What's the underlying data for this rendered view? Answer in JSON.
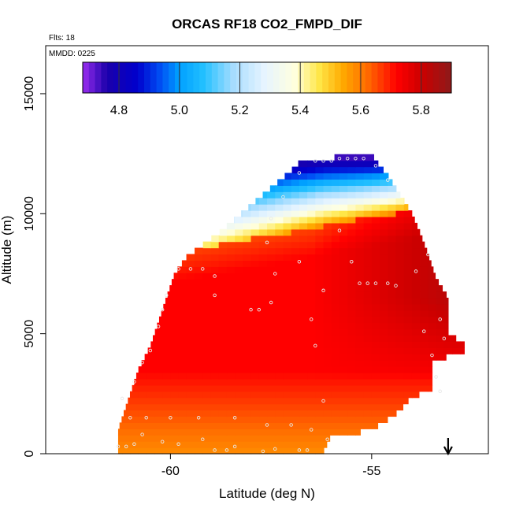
{
  "chart_data": {
    "type": "heatmap",
    "title": "ORCAS RF18 CO2_FMPD_DIF",
    "xlabel": "Latitude (deg N)",
    "ylabel": "Altitude (m)",
    "xlim": [
      -63.1,
      -52.1
    ],
    "ylim": [
      0,
      17000
    ],
    "x_ticks": [
      -60,
      -55
    ],
    "x_tick_labels": [
      "-60",
      "-55"
    ],
    "y_ticks": [
      0,
      5000,
      10000,
      15000
    ],
    "y_tick_labels": [
      "0",
      "5000",
      "10000",
      "15000"
    ],
    "flights_note": "Flts: 18",
    "date_note": "MMDD: 0225",
    "arrow_marker_latitude": -53.1,
    "colorbar": {
      "min": 4.68,
      "max": 5.9,
      "ticks": [
        4.8,
        5.0,
        5.2,
        5.4,
        5.6,
        5.8
      ],
      "tick_labels": [
        "4.8",
        "5.0",
        "5.2",
        "5.4",
        "5.6",
        "5.8"
      ],
      "stops": [
        {
          "v": 4.68,
          "c": "#9a2ef0"
        },
        {
          "v": 4.76,
          "c": "#1b00aa"
        },
        {
          "v": 4.86,
          "c": "#0000cc"
        },
        {
          "v": 4.94,
          "c": "#0052f5"
        },
        {
          "v": 5.0,
          "c": "#00a0ff"
        },
        {
          "v": 5.08,
          "c": "#22c0ff"
        },
        {
          "v": 5.18,
          "c": "#a8ddff"
        },
        {
          "v": 5.28,
          "c": "#e6f4ff"
        },
        {
          "v": 5.38,
          "c": "#ffffe0"
        },
        {
          "v": 5.46,
          "c": "#ffe84a"
        },
        {
          "v": 5.54,
          "c": "#ffaa00"
        },
        {
          "v": 5.62,
          "c": "#ff6d00"
        },
        {
          "v": 5.72,
          "c": "#ff0000"
        },
        {
          "v": 5.8,
          "c": "#cc0000"
        },
        {
          "v": 5.9,
          "c": "#8c1a1a"
        }
      ]
    },
    "field_description": "CO2 difference curtain: ~5.58 near surface, ~5.72 mid-troposphere, increasing toward ~5.85 in the southern/eastern upper region; sharp decrease above a tilted boundary (≈8300 m at -60.5 to ≈10300 m at -53.8) down to ~4.75 at ~12000 m.",
    "boundary_left": [
      [
        -61.3,
        0
      ],
      [
        -61.3,
        1000
      ],
      [
        -61.2,
        1500
      ],
      [
        -61.0,
        2500
      ],
      [
        -60.8,
        3500
      ],
      [
        -60.5,
        4500
      ],
      [
        -60.3,
        5500
      ],
      [
        -60.1,
        6500
      ],
      [
        -59.9,
        7500
      ],
      [
        -59.6,
        8200
      ],
      [
        -58.8,
        9200
      ],
      [
        -57.7,
        10800
      ],
      [
        -57.0,
        11800
      ],
      [
        -56.7,
        12300
      ],
      [
        -56.0,
        12300
      ],
      [
        -55.7,
        12500
      ]
    ],
    "boundary_right": [
      [
        -55.0,
        12500
      ],
      [
        -54.9,
        12200
      ],
      [
        -54.6,
        11600
      ],
      [
        -54.3,
        10800
      ],
      [
        -54.0,
        10000
      ],
      [
        -53.8,
        9200
      ],
      [
        -53.6,
        8300
      ],
      [
        -53.4,
        7300
      ],
      [
        -53.1,
        6500
      ],
      [
        -53.1,
        5000
      ],
      [
        -52.7,
        4600
      ],
      [
        -52.7,
        4200
      ],
      [
        -53.5,
        3900
      ],
      [
        -53.5,
        2600
      ],
      [
        -54.0,
        2400
      ],
      [
        -54.3,
        1800
      ],
      [
        -54.8,
        1200
      ],
      [
        -55.3,
        900
      ],
      [
        -56.0,
        800
      ],
      [
        -56.2,
        100
      ]
    ],
    "flight_points": [
      {
        "lat": -61.3,
        "alt": 300
      },
      {
        "lat": -61.1,
        "alt": 300
      },
      {
        "lat": -60.9,
        "alt": 400
      },
      {
        "lat": -60.7,
        "alt": 800
      },
      {
        "lat": -60.2,
        "alt": 500
      },
      {
        "lat": -59.8,
        "alt": 400
      },
      {
        "lat": -59.2,
        "alt": 600
      },
      {
        "lat": -58.9,
        "alt": 150
      },
      {
        "lat": -58.6,
        "alt": 150
      },
      {
        "lat": -58.4,
        "alt": 300
      },
      {
        "lat": -57.7,
        "alt": 100
      },
      {
        "lat": -57.4,
        "alt": 200
      },
      {
        "lat": -56.8,
        "alt": 150
      },
      {
        "lat": -56.6,
        "alt": 150
      },
      {
        "lat": -56.1,
        "alt": 600
      },
      {
        "lat": -61.0,
        "alt": 1500
      },
      {
        "lat": -60.6,
        "alt": 1500
      },
      {
        "lat": -60.0,
        "alt": 1500
      },
      {
        "lat": -59.3,
        "alt": 1500
      },
      {
        "lat": -58.4,
        "alt": 1500
      },
      {
        "lat": -57.6,
        "alt": 1200
      },
      {
        "lat": -57.0,
        "alt": 1200
      },
      {
        "lat": -56.5,
        "alt": 1000
      },
      {
        "lat": -61.2,
        "alt": 2300
      },
      {
        "lat": -60.9,
        "alt": 3000
      },
      {
        "lat": -60.7,
        "alt": 3800
      },
      {
        "lat": -60.5,
        "alt": 4300
      },
      {
        "lat": -60.3,
        "alt": 5300
      },
      {
        "lat": -60.2,
        "alt": 6000
      },
      {
        "lat": -60.1,
        "alt": 6600
      },
      {
        "lat": -59.8,
        "alt": 7700
      },
      {
        "lat": -59.5,
        "alt": 7700
      },
      {
        "lat": -59.2,
        "alt": 7700
      },
      {
        "lat": -58.9,
        "alt": 7400
      },
      {
        "lat": -58.0,
        "alt": 6000
      },
      {
        "lat": -57.8,
        "alt": 6000
      },
      {
        "lat": -57.5,
        "alt": 6300
      },
      {
        "lat": -57.4,
        "alt": 7500
      },
      {
        "lat": -58.9,
        "alt": 6600
      },
      {
        "lat": -56.5,
        "alt": 5600
      },
      {
        "lat": -56.4,
        "alt": 4500
      },
      {
        "lat": -56.2,
        "alt": 6800
      },
      {
        "lat": -56.2,
        "alt": 2200
      },
      {
        "lat": -55.5,
        "alt": 8000
      },
      {
        "lat": -55.3,
        "alt": 7100
      },
      {
        "lat": -55.1,
        "alt": 7100
      },
      {
        "lat": -54.9,
        "alt": 7100
      },
      {
        "lat": -54.6,
        "alt": 7100
      },
      {
        "lat": -54.4,
        "alt": 7000
      },
      {
        "lat": -53.9,
        "alt": 7600
      },
      {
        "lat": -53.6,
        "alt": 8300
      },
      {
        "lat": -53.7,
        "alt": 5100
      },
      {
        "lat": -53.5,
        "alt": 4100
      },
      {
        "lat": -53.4,
        "alt": 3200
      },
      {
        "lat": -53.3,
        "alt": 2600
      },
      {
        "lat": -53.3,
        "alt": 5600
      },
      {
        "lat": -53.2,
        "alt": 4800
      },
      {
        "lat": -57.5,
        "alt": 9800
      },
      {
        "lat": -57.2,
        "alt": 10700
      },
      {
        "lat": -56.8,
        "alt": 11700
      },
      {
        "lat": -57.6,
        "alt": 8800
      },
      {
        "lat": -56.8,
        "alt": 8000
      },
      {
        "lat": -55.8,
        "alt": 9300
      },
      {
        "lat": -56.2,
        "alt": 12200
      },
      {
        "lat": -56.4,
        "alt": 12200
      },
      {
        "lat": -56.0,
        "alt": 12200
      },
      {
        "lat": -55.8,
        "alt": 12300
      },
      {
        "lat": -55.6,
        "alt": 12300
      },
      {
        "lat": -55.4,
        "alt": 12300
      },
      {
        "lat": -55.2,
        "alt": 12300
      },
      {
        "lat": -54.9,
        "alt": 12000
      },
      {
        "lat": -54.6,
        "alt": 11400
      }
    ]
  }
}
